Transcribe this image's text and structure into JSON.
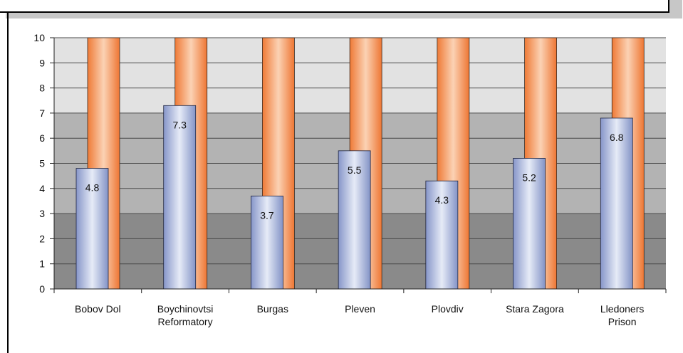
{
  "chart_data": {
    "type": "bar",
    "categories": [
      "Bobov Dol",
      "Boychinovtsi Reformatory",
      "Burgas",
      "Pleven",
      "Plovdiv",
      "Stara Zagora",
      "Lledoners Prison"
    ],
    "category_lines": [
      [
        "Bobov Dol"
      ],
      [
        "Boychinovtsi",
        "Reformatory"
      ],
      [
        "Burgas"
      ],
      [
        "Pleven"
      ],
      [
        "Plovdiv"
      ],
      [
        "Stara Zagora"
      ],
      [
        "Lledoners",
        "Prison"
      ]
    ],
    "series": [
      {
        "values": [
          4.8,
          7.3,
          3.7,
          5.5,
          4.3,
          5.2,
          6.8
        ],
        "color": "#8c9ccd",
        "data_labels": [
          "4.8",
          "7.3",
          "3.7",
          "5.5",
          "4.3",
          "5.2",
          "6.8"
        ]
      },
      {
        "values": [
          10,
          10,
          10,
          10,
          10,
          10,
          10
        ],
        "color": "#f2894a"
      }
    ],
    "ylim": [
      0,
      10
    ],
    "yticks": [
      "0",
      "1",
      "2",
      "3",
      "4",
      "5",
      "6",
      "7",
      "8",
      "9",
      "10"
    ],
    "bands": [
      {
        "from": 0,
        "to": 3,
        "color": "#8a8a8a"
      },
      {
        "from": 3,
        "to": 7,
        "color": "#b3b3b3"
      },
      {
        "from": 7,
        "to": 10,
        "color": "#e2e2e2"
      }
    ],
    "grid": true
  }
}
